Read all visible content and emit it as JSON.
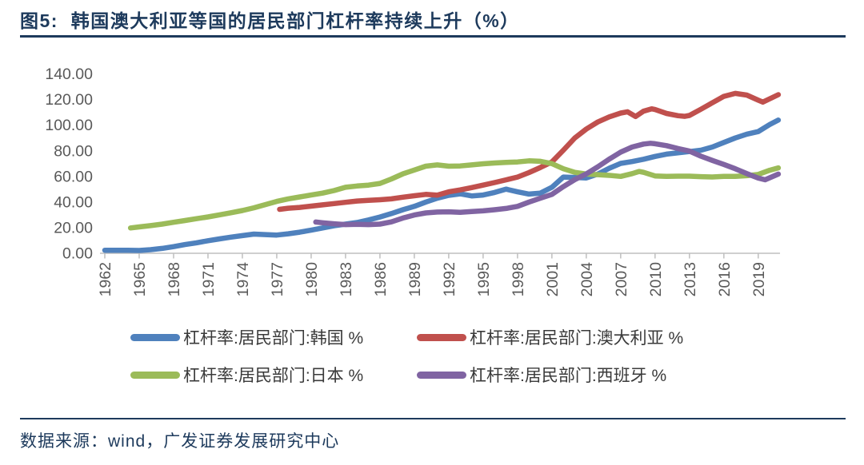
{
  "header": {
    "title": "图5:  韩国澳大利亚等国的居民部门杠杆率持续上升（%）"
  },
  "footer": {
    "source": "数据来源：wind，广发证券发展研究中心"
  },
  "colors": {
    "navy": "#1d3a5c",
    "axis_line": "#bfbfbf",
    "tick_label": "#595959"
  },
  "chart_data": {
    "type": "line",
    "title": "韩国澳大利亚等国的居民部门杠杆率持续上升（%）",
    "xlabel": "",
    "ylabel": "",
    "ylim": [
      0,
      140
    ],
    "y_ticks": [
      0,
      20,
      40,
      60,
      80,
      100,
      120,
      140
    ],
    "y_tick_labels": [
      "0.00",
      "20.00",
      "40.00",
      "60.00",
      "80.00",
      "100.00",
      "120.00",
      "140.00"
    ],
    "x_ticks": [
      1962,
      1965,
      1968,
      1971,
      1974,
      1977,
      1980,
      1983,
      1986,
      1989,
      1992,
      1995,
      1998,
      2001,
      2004,
      2007,
      2010,
      2013,
      2016,
      2019
    ],
    "x_range": [
      1961.5,
      2021.2
    ],
    "grid": false,
    "legend_position": "bottom",
    "axis_color": "#bfbfbf",
    "tick_label_color": "#595959",
    "line_width": 6.5,
    "series": [
      {
        "key": "korea",
        "name": "杠杆率:居民部门:韩国 %",
        "color": "#4f81bd",
        "points": [
          [
            1962,
            2.4
          ],
          [
            1963,
            2.4
          ],
          [
            1964,
            2.3
          ],
          [
            1965,
            2.2
          ],
          [
            1966,
            2.8
          ],
          [
            1967,
            3.8
          ],
          [
            1968,
            5.2
          ],
          [
            1969,
            6.8
          ],
          [
            1970,
            8.2
          ],
          [
            1971,
            9.8
          ],
          [
            1972,
            11.2
          ],
          [
            1973,
            12.6
          ],
          [
            1974,
            13.8
          ],
          [
            1975,
            15.0
          ],
          [
            1976,
            14.6
          ],
          [
            1977,
            14.2
          ],
          [
            1978,
            15.2
          ],
          [
            1979,
            16.5
          ],
          [
            1980,
            18.0
          ],
          [
            1981,
            19.8
          ],
          [
            1982,
            21.5
          ],
          [
            1983,
            22.8
          ],
          [
            1984,
            24.0
          ],
          [
            1985,
            26.0
          ],
          [
            1986,
            28.3
          ],
          [
            1987,
            31.0
          ],
          [
            1988,
            34.0
          ],
          [
            1989,
            36.6
          ],
          [
            1990,
            40.0
          ],
          [
            1991,
            43.0
          ],
          [
            1992,
            45.2
          ],
          [
            1993,
            46.4
          ],
          [
            1994,
            44.8
          ],
          [
            1995,
            45.5
          ],
          [
            1996,
            47.5
          ],
          [
            1997,
            50.1
          ],
          [
            1998,
            48.0
          ],
          [
            1999,
            46.2
          ],
          [
            2000,
            47.0
          ],
          [
            2001,
            51.5
          ],
          [
            2002,
            59.5
          ],
          [
            2003,
            59.2
          ],
          [
            2004,
            58.8
          ],
          [
            2005,
            61.8
          ],
          [
            2006,
            66.4
          ],
          [
            2007,
            70.2
          ],
          [
            2008,
            71.6
          ],
          [
            2009,
            73.4
          ],
          [
            2010,
            75.6
          ],
          [
            2011,
            77.4
          ],
          [
            2012,
            78.4
          ],
          [
            2013,
            79.4
          ],
          [
            2014,
            80.5
          ],
          [
            2015,
            83.0
          ],
          [
            2016,
            86.5
          ],
          [
            2017,
            90.0
          ],
          [
            2018,
            93.0
          ],
          [
            2019,
            95.0
          ],
          [
            2020,
            100.5
          ],
          [
            2020.75,
            104.0
          ]
        ]
      },
      {
        "key": "australia",
        "name": "杠杆率:居民部门:澳大利亚 %",
        "color": "#c0504d",
        "points": [
          [
            1977.25,
            34.3
          ],
          [
            1978,
            35.2
          ],
          [
            1979,
            35.8
          ],
          [
            1980,
            36.8
          ],
          [
            1981,
            37.8
          ],
          [
            1982,
            38.8
          ],
          [
            1983,
            39.8
          ],
          [
            1984,
            40.8
          ],
          [
            1985,
            41.3
          ],
          [
            1986,
            41.8
          ],
          [
            1987,
            42.5
          ],
          [
            1988,
            43.8
          ],
          [
            1989,
            44.9
          ],
          [
            1990,
            46.0
          ],
          [
            1991,
            45.4
          ],
          [
            1992,
            48.0
          ],
          [
            1993,
            49.5
          ],
          [
            1994,
            51.3
          ],
          [
            1995,
            53.2
          ],
          [
            1996,
            55.2
          ],
          [
            1997,
            57.3
          ],
          [
            1998,
            59.5
          ],
          [
            1999,
            63.0
          ],
          [
            2000,
            67.0
          ],
          [
            2001,
            71.3
          ],
          [
            2002,
            80.5
          ],
          [
            2003,
            90.0
          ],
          [
            2004,
            97.0
          ],
          [
            2005,
            102.5
          ],
          [
            2006,
            106.5
          ],
          [
            2007,
            109.5
          ],
          [
            2007.6,
            110.5
          ],
          [
            2008.3,
            106.8
          ],
          [
            2009,
            111.0
          ],
          [
            2009.7,
            112.8
          ],
          [
            2010,
            112.2
          ],
          [
            2011,
            109.2
          ],
          [
            2012,
            107.4
          ],
          [
            2012.6,
            106.9
          ],
          [
            2013,
            107.6
          ],
          [
            2014,
            112.5
          ],
          [
            2015,
            117.5
          ],
          [
            2016,
            122.5
          ],
          [
            2017,
            124.8
          ],
          [
            2018,
            123.5
          ],
          [
            2019,
            119.5
          ],
          [
            2019.4,
            118.0
          ],
          [
            2020.75,
            123.8
          ]
        ]
      },
      {
        "key": "japan",
        "name": "杠杆率:居民部门:日本 %",
        "color": "#9bbb59",
        "points": [
          [
            1964.25,
            19.8
          ],
          [
            1965,
            20.6
          ],
          [
            1966,
            21.6
          ],
          [
            1967,
            22.8
          ],
          [
            1968,
            24.2
          ],
          [
            1969,
            25.6
          ],
          [
            1970,
            27.0
          ],
          [
            1971,
            28.4
          ],
          [
            1972,
            30.0
          ],
          [
            1973,
            31.6
          ],
          [
            1974,
            33.4
          ],
          [
            1975,
            35.5
          ],
          [
            1976,
            38.0
          ],
          [
            1977,
            40.5
          ],
          [
            1978,
            42.5
          ],
          [
            1979,
            44.0
          ],
          [
            1980,
            45.5
          ],
          [
            1981,
            47.0
          ],
          [
            1982,
            49.0
          ],
          [
            1983,
            51.5
          ],
          [
            1984,
            52.5
          ],
          [
            1985,
            53.2
          ],
          [
            1986,
            54.5
          ],
          [
            1987,
            58.0
          ],
          [
            1988,
            62.0
          ],
          [
            1989,
            65.0
          ],
          [
            1990,
            68.0
          ],
          [
            1991,
            69.0
          ],
          [
            1992,
            68.0
          ],
          [
            1993,
            68.2
          ],
          [
            1994,
            69.0
          ],
          [
            1995,
            69.9
          ],
          [
            1996,
            70.5
          ],
          [
            1997,
            71.0
          ],
          [
            1998,
            71.3
          ],
          [
            1999,
            72.2
          ],
          [
            2000,
            71.8
          ],
          [
            2001,
            70.0
          ],
          [
            2002,
            66.0
          ],
          [
            2003,
            63.2
          ],
          [
            2004,
            61.8
          ],
          [
            2005,
            61.4
          ],
          [
            2006,
            60.8
          ],
          [
            2007,
            60.0
          ],
          [
            2008,
            62.2
          ],
          [
            2008.6,
            63.9
          ],
          [
            2009,
            63.2
          ],
          [
            2010,
            60.4
          ],
          [
            2011,
            60.0
          ],
          [
            2012,
            60.2
          ],
          [
            2013,
            60.2
          ],
          [
            2014,
            59.8
          ],
          [
            2015,
            59.6
          ],
          [
            2016,
            60.0
          ],
          [
            2017,
            60.0
          ],
          [
            2018,
            60.6
          ],
          [
            2019,
            61.6
          ],
          [
            2020,
            64.8
          ],
          [
            2020.75,
            66.7
          ]
        ]
      },
      {
        "key": "spain",
        "name": "杠杆率:居民部门:西班牙 %",
        "color": "#8064a2",
        "points": [
          [
            1980.4,
            24.4
          ],
          [
            1981,
            23.8
          ],
          [
            1982,
            23.0
          ],
          [
            1983,
            22.4
          ],
          [
            1984,
            22.6
          ],
          [
            1985,
            22.4
          ],
          [
            1986,
            22.8
          ],
          [
            1987,
            24.5
          ],
          [
            1988,
            27.5
          ],
          [
            1989,
            29.9
          ],
          [
            1990,
            31.5
          ],
          [
            1991,
            32.2
          ],
          [
            1992,
            32.4
          ],
          [
            1993,
            32.0
          ],
          [
            1994,
            32.6
          ],
          [
            1995,
            33.1
          ],
          [
            1996,
            34.0
          ],
          [
            1997,
            35.0
          ],
          [
            1998,
            36.6
          ],
          [
            1999,
            40.0
          ],
          [
            2000,
            43.0
          ],
          [
            2001,
            46.0
          ],
          [
            2002,
            52.0
          ],
          [
            2003,
            57.5
          ],
          [
            2004,
            62.0
          ],
          [
            2005,
            67.5
          ],
          [
            2006,
            73.5
          ],
          [
            2007,
            79.0
          ],
          [
            2008,
            83.0
          ],
          [
            2009,
            85.3
          ],
          [
            2009.6,
            85.9
          ],
          [
            2010,
            85.5
          ],
          [
            2011,
            84.0
          ],
          [
            2012,
            81.8
          ],
          [
            2013,
            79.8
          ],
          [
            2014,
            75.8
          ],
          [
            2015,
            72.5
          ],
          [
            2016,
            69.4
          ],
          [
            2017,
            66.0
          ],
          [
            2018,
            62.2
          ],
          [
            2019,
            58.7
          ],
          [
            2019.6,
            57.4
          ],
          [
            2020.75,
            61.8
          ]
        ]
      }
    ]
  }
}
